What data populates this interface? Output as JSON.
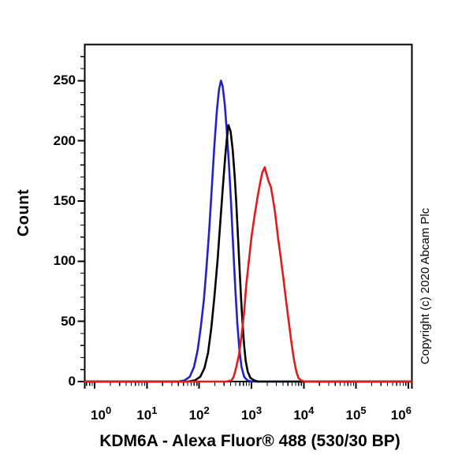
{
  "copyright": "Copyright (c) 2020 Abcam Plc",
  "chart_data": {
    "type": "line",
    "title": "",
    "xlabel": "KDM6A - Alexa Fluor® 488 (530/30 BP)",
    "ylabel": "Count",
    "x_scale": "log10",
    "xlog_range": [
      -0.19,
      6.07
    ],
    "ylim": [
      0,
      280
    ],
    "grid": "off",
    "legend": "none",
    "y_ticks": [
      0,
      50,
      100,
      150,
      200,
      250
    ],
    "y_minor_step": 10,
    "y_minor_max": 270,
    "x_tick_base": "10",
    "x_tick_exponents": [
      0,
      1,
      2,
      3,
      4,
      5,
      6
    ],
    "series": [
      {
        "name": "blue",
        "color": "#2222cc",
        "peak": {
          "x": 260,
          "count": 250
        },
        "points": [
          [
            -0.19,
            0
          ],
          [
            1.6,
            0
          ],
          [
            1.72,
            1
          ],
          [
            1.82,
            4
          ],
          [
            1.9,
            12
          ],
          [
            1.97,
            26
          ],
          [
            2.03,
            45
          ],
          [
            2.09,
            68
          ],
          [
            2.14,
            95
          ],
          [
            2.19,
            125
          ],
          [
            2.24,
            160
          ],
          [
            2.29,
            196
          ],
          [
            2.34,
            226
          ],
          [
            2.38,
            243
          ],
          [
            2.417,
            250
          ],
          [
            2.45,
            245
          ],
          [
            2.49,
            230
          ],
          [
            2.53,
            207
          ],
          [
            2.57,
            180
          ],
          [
            2.61,
            148
          ],
          [
            2.65,
            112
          ],
          [
            2.69,
            78
          ],
          [
            2.73,
            48
          ],
          [
            2.77,
            26
          ],
          [
            2.81,
            12
          ],
          [
            2.86,
            4
          ],
          [
            2.92,
            1
          ],
          [
            3.0,
            0
          ],
          [
            6.06,
            0
          ]
        ]
      },
      {
        "name": "black",
        "color": "#000000",
        "peak": {
          "x": 365,
          "count": 213
        },
        "points": [
          [
            -0.19,
            0
          ],
          [
            1.78,
            0
          ],
          [
            1.92,
            1
          ],
          [
            2.02,
            4
          ],
          [
            2.1,
            11
          ],
          [
            2.17,
            24
          ],
          [
            2.23,
            44
          ],
          [
            2.29,
            70
          ],
          [
            2.35,
            100
          ],
          [
            2.4,
            130
          ],
          [
            2.45,
            160
          ],
          [
            2.5,
            188
          ],
          [
            2.53,
            202
          ],
          [
            2.56,
            213
          ],
          [
            2.6,
            208
          ],
          [
            2.64,
            193
          ],
          [
            2.68,
            170
          ],
          [
            2.71,
            148
          ],
          [
            2.74,
            122
          ],
          [
            2.77,
            96
          ],
          [
            2.8,
            70
          ],
          [
            2.83,
            48
          ],
          [
            2.86,
            30
          ],
          [
            2.89,
            17
          ],
          [
            2.93,
            8
          ],
          [
            2.98,
            3
          ],
          [
            3.05,
            1
          ],
          [
            3.12,
            0
          ],
          [
            6.06,
            0
          ]
        ]
      },
      {
        "name": "red",
        "color": "#e31a1a",
        "peak": {
          "x": 1800,
          "count": 178
        },
        "points": [
          [
            -0.19,
            0
          ],
          [
            2.52,
            0
          ],
          [
            2.62,
            1
          ],
          [
            2.66,
            4
          ],
          [
            2.71,
            12
          ],
          [
            2.76,
            22
          ],
          [
            2.81,
            38
          ],
          [
            2.86,
            58
          ],
          [
            2.9,
            80
          ],
          [
            2.95,
            100
          ],
          [
            3.0,
            120
          ],
          [
            3.06,
            138
          ],
          [
            3.12,
            154
          ],
          [
            3.17,
            166
          ],
          [
            3.21,
            174
          ],
          [
            3.255,
            178
          ],
          [
            3.29,
            172
          ],
          [
            3.33,
            166
          ],
          [
            3.37,
            162
          ],
          [
            3.41,
            152
          ],
          [
            3.45,
            141
          ],
          [
            3.48,
            130
          ],
          [
            3.51,
            119
          ],
          [
            3.56,
            103
          ],
          [
            3.61,
            86
          ],
          [
            3.66,
            68
          ],
          [
            3.71,
            51
          ],
          [
            3.76,
            34
          ],
          [
            3.81,
            19
          ],
          [
            3.86,
            8
          ],
          [
            3.9,
            3
          ],
          [
            3.95,
            1
          ],
          [
            4.02,
            0
          ],
          [
            6.06,
            0
          ]
        ]
      }
    ]
  }
}
